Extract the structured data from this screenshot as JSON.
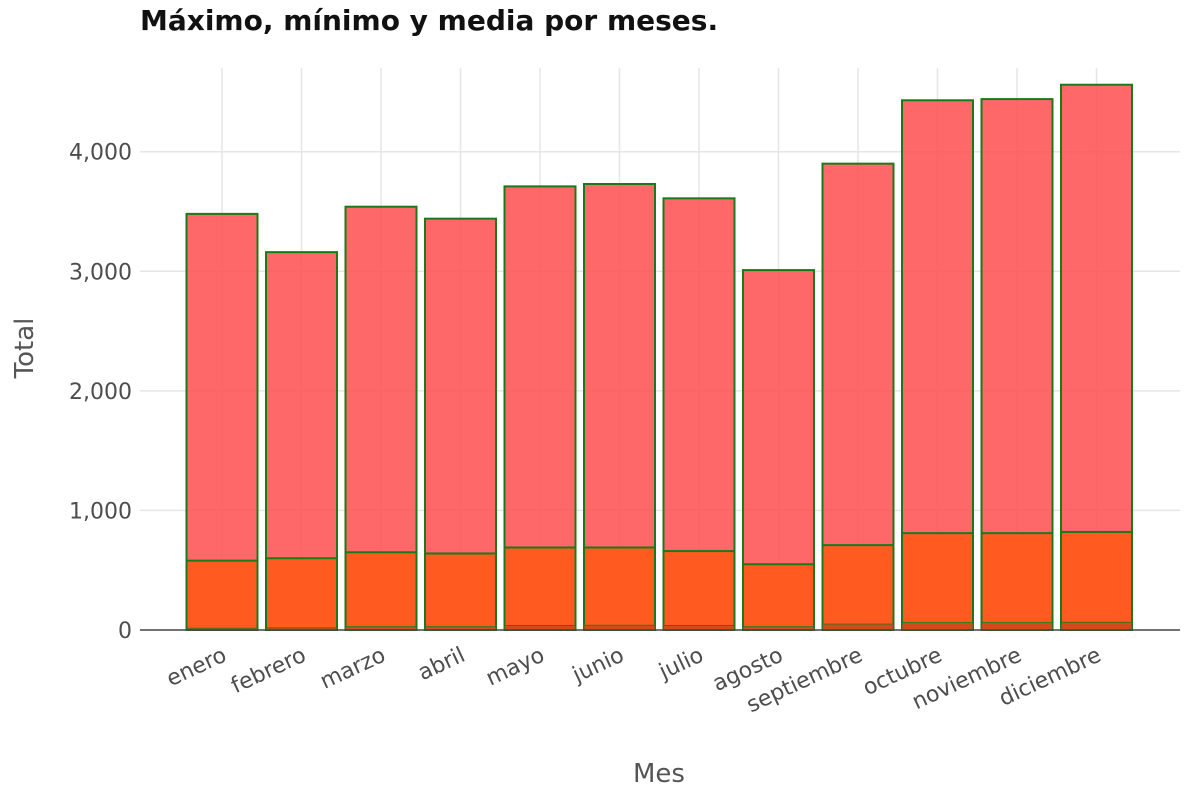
{
  "chart_data": {
    "type": "bar",
    "title": "Máximo, mínimo y media por meses.",
    "xlabel": "Mes",
    "ylabel": "Total",
    "categories": [
      "enero",
      "febrero",
      "marzo",
      "abril",
      "mayo",
      "junio",
      "julio",
      "agosto",
      "septiembre",
      "octubre",
      "noviembre",
      "diciembre"
    ],
    "series": [
      {
        "values": [
          3480,
          3160,
          3540,
          3440,
          3710,
          3730,
          3610,
          3010,
          3900,
          4430,
          4440,
          4560
        ]
      },
      {
        "values": [
          580,
          600,
          650,
          640,
          690,
          690,
          660,
          550,
          710,
          810,
          810,
          820
        ]
      },
      {
        "values": [
          15,
          18,
          28,
          28,
          38,
          40,
          38,
          28,
          50,
          62,
          62,
          65
        ]
      }
    ],
    "ylim": [
      0,
      4700
    ],
    "yticks": [
      0,
      1000,
      2000,
      3000,
      4000
    ],
    "ytick_labels": [
      "0",
      "1,000",
      "2,000",
      "3,000",
      "4,000"
    ],
    "grid": true,
    "colors": {
      "max_fill": "#ff4d4d",
      "mean_fill": "#ff5a1a",
      "min_fill": "#cc4a1a",
      "outline": "#1a7a1a",
      "grid": "#e6e6e6",
      "baseline": "#444444"
    }
  }
}
